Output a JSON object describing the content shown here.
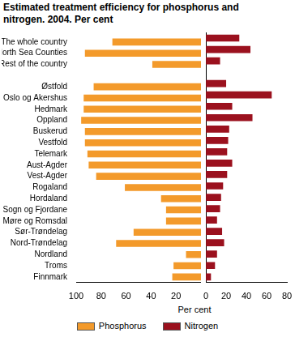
{
  "chart_data": {
    "type": "bar",
    "orientation": "horizontal",
    "title": "Estimated treatment efficiency for phosphorus and nitrogen. 2004. Per cent",
    "xlabel": "Per cent",
    "categories": [
      "The whole country",
      "North Sea Counties",
      "Rest of the country",
      null,
      "Østfold",
      "Oslo og Akershus",
      "Hedmark",
      "Oppland",
      "Buskerud",
      "Vestfold",
      "Telemark",
      "Aust-Agder",
      "Vest-Agder",
      "Rogaland",
      "Hordaland",
      "Sogn og Fjordane",
      "Møre og Romsdal",
      "Sør-Trøndelag",
      "Nord-Trøndelag",
      "Nordland",
      "Troms",
      "Finnmark"
    ],
    "series": [
      {
        "name": "Phosphorus",
        "color": "#f39a2b",
        "axis": "x",
        "values": [
          71,
          93,
          39,
          null,
          86,
          94,
          94,
          96,
          93,
          93,
          91,
          90,
          84,
          61,
          32,
          28,
          28,
          54,
          68,
          12,
          22,
          23
        ]
      },
      {
        "name": "Nitrogen",
        "color": "#9b111e",
        "axis": "x2",
        "values": [
          33,
          44,
          14,
          null,
          20,
          65,
          26,
          46,
          23,
          22,
          21,
          26,
          21,
          17,
          15,
          14,
          11,
          16,
          18,
          11,
          9,
          5
        ]
      }
    ],
    "xlim": [
      0,
      100
    ],
    "xticks": [
      20,
      40,
      60,
      80,
      100
    ],
    "x2lim": [
      0,
      80
    ],
    "x2ticks": [
      0,
      20,
      40,
      60,
      80
    ],
    "grid": false,
    "legend": "bottom"
  }
}
